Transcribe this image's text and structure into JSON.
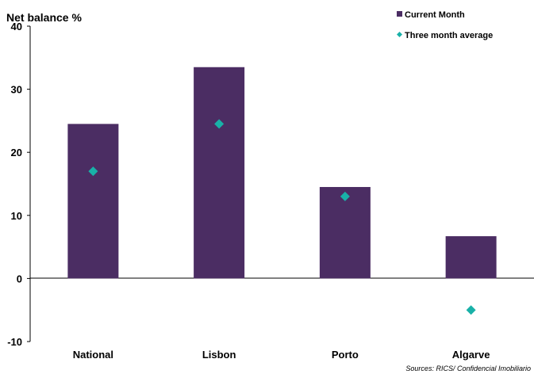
{
  "chart_data": {
    "type": "bar",
    "ylabel": "Net balance %",
    "categories": [
      "National",
      "Lisbon",
      "Porto",
      "Algarve"
    ],
    "ylim": [
      -10,
      40
    ],
    "yticks": [
      -10,
      0,
      10,
      20,
      30,
      40
    ],
    "grid": false,
    "legend_position": "top-right",
    "series": [
      {
        "name": "Current Month",
        "kind": "bar",
        "color": "#4b2d63",
        "values": [
          24.5,
          33.5,
          14.5,
          6.7
        ]
      },
      {
        "name": "Three month average",
        "kind": "marker",
        "marker": "diamond",
        "color": "#19b1a8",
        "values": [
          17.0,
          24.5,
          13.0,
          -5.0
        ]
      }
    ],
    "source": "Sources: RICS/ Confidencial Imobiliario"
  }
}
